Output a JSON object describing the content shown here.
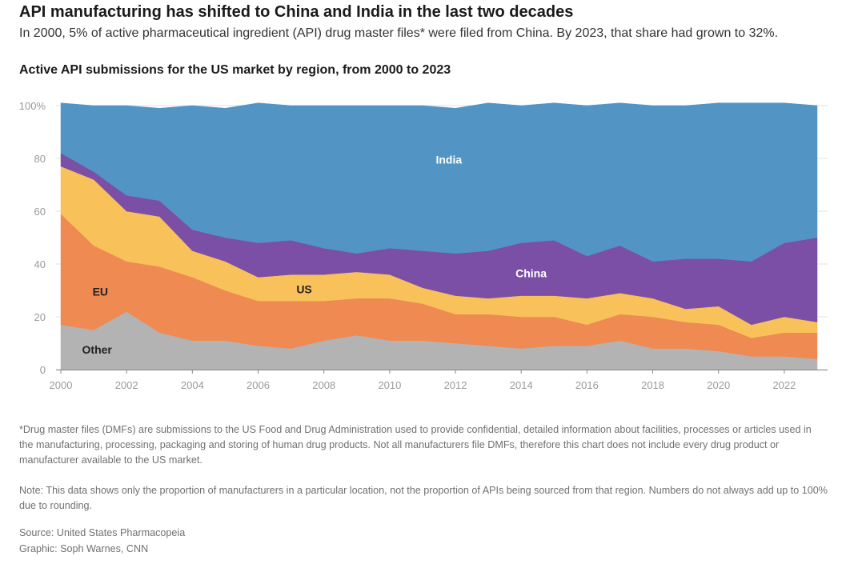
{
  "header": {
    "title": "API manufacturing has shifted to China and India in the last two decades",
    "subtitle": "In 2000, 5% of active pharmaceutical ingredient (API) drug master files* were filed from China. By 2023, that share had grown to 32%."
  },
  "chart_data": {
    "type": "area",
    "stacked": true,
    "title": "Active API submissions for the US market by region, from 2000 to 2023",
    "xlabel": "",
    "ylabel": "",
    "x": [
      2000,
      2001,
      2002,
      2003,
      2004,
      2005,
      2006,
      2007,
      2008,
      2009,
      2010,
      2011,
      2012,
      2013,
      2014,
      2015,
      2016,
      2017,
      2018,
      2019,
      2020,
      2021,
      2022,
      2023
    ],
    "ylim": [
      0,
      100
    ],
    "xlim": [
      2000,
      2023
    ],
    "yticks": [
      0,
      20,
      40,
      60,
      80,
      100
    ],
    "ytick_labels": [
      "0",
      "20",
      "40",
      "60",
      "80",
      "100%"
    ],
    "xticks": [
      2000,
      2002,
      2004,
      2006,
      2008,
      2010,
      2012,
      2014,
      2016,
      2018,
      2020,
      2022
    ],
    "grid": true,
    "series": [
      {
        "name": "Other",
        "color": "#b3b3b3",
        "values": [
          17,
          15,
          22,
          14,
          11,
          11,
          9,
          8,
          11,
          13,
          11,
          11,
          10,
          9,
          8,
          9,
          9,
          11,
          8,
          8,
          7,
          5,
          5,
          4
        ]
      },
      {
        "name": "EU",
        "color": "#ef8a52",
        "values": [
          42,
          32,
          19,
          25,
          24,
          19,
          17,
          18,
          15,
          14,
          16,
          14,
          11,
          12,
          12,
          11,
          8,
          10,
          12,
          10,
          10,
          7,
          9,
          10
        ]
      },
      {
        "name": "US",
        "color": "#f8c15a",
        "values": [
          18,
          25,
          19,
          19,
          10,
          11,
          9,
          10,
          10,
          10,
          9,
          6,
          7,
          6,
          8,
          8,
          10,
          8,
          7,
          5,
          7,
          5,
          6,
          4
        ]
      },
      {
        "name": "China",
        "color": "#7b4fa6",
        "values": [
          5,
          3,
          6,
          6,
          8,
          9,
          13,
          13,
          10,
          7,
          10,
          14,
          16,
          18,
          20,
          21,
          16,
          18,
          14,
          19,
          18,
          24,
          28,
          32
        ]
      },
      {
        "name": "India",
        "color": "#5294c4",
        "values": [
          19,
          25,
          34,
          35,
          47,
          49,
          53,
          51,
          54,
          56,
          54,
          55,
          55,
          56,
          52,
          52,
          57,
          54,
          59,
          58,
          59,
          60,
          53,
          50
        ]
      }
    ],
    "annotations": [
      "India",
      "China",
      "US",
      "EU",
      "Other"
    ]
  },
  "footnotes": {
    "dmf": "*Drug master files (DMFs) are submissions to the US Food and Drug Administration used to provide confidential, detailed information about facilities, processes or articles used in the manufacturing, processing, packaging and storing of human drug products. Not all manufacturers file DMFs, therefore this chart does not include every drug product or manufacturer available to the US market.",
    "note": "Note: This data shows only the proportion of manufacturers in a particular location, not the proportion of APIs being sourced from that region. Numbers do not always add up to 100% due to rounding.",
    "source": "Source: United States Pharmacopeia",
    "graphic": "Graphic: Soph Warnes, CNN"
  }
}
